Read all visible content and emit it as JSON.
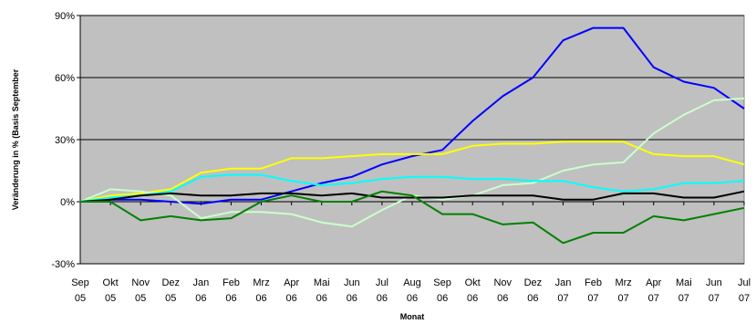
{
  "chart_data": {
    "type": "line",
    "xlabel": "Monat",
    "ylabel": "Veränderung in % (Basis September",
    "ylim": [
      -30,
      90
    ],
    "yticks": [
      -30,
      0,
      30,
      60,
      90
    ],
    "ytick_labels": [
      "-30%",
      "0%",
      "30%",
      "60%",
      "90%"
    ],
    "grid": "horizontal",
    "plot_background": "#c0c0c0",
    "categories": [
      [
        "Sep",
        "05"
      ],
      [
        "Okt",
        "05"
      ],
      [
        "Nov",
        "05"
      ],
      [
        "Dez",
        "05"
      ],
      [
        "Jan",
        "06"
      ],
      [
        "Feb",
        "06"
      ],
      [
        "Mrz",
        "06"
      ],
      [
        "Apr",
        "06"
      ],
      [
        "Mai",
        "06"
      ],
      [
        "Jun",
        "06"
      ],
      [
        "Jul",
        "06"
      ],
      [
        "Aug",
        "06"
      ],
      [
        "Sep",
        "06"
      ],
      [
        "Okt",
        "06"
      ],
      [
        "Nov",
        "06"
      ],
      [
        "Dez",
        "06"
      ],
      [
        "Jan",
        "07"
      ],
      [
        "Feb",
        "07"
      ],
      [
        "Mrz",
        "07"
      ],
      [
        "Apr",
        "07"
      ],
      [
        "Mai",
        "07"
      ],
      [
        "Jun",
        "07"
      ],
      [
        "Jul",
        "07"
      ]
    ],
    "series": [
      {
        "color": "#0000ff",
        "values": [
          0,
          1,
          1,
          0,
          -1,
          1,
          1,
          5,
          9,
          12,
          18,
          22,
          25,
          39,
          51,
          60,
          78,
          84,
          84,
          65,
          58,
          55,
          45
        ]
      },
      {
        "color": "#ffff00",
        "values": [
          0,
          3,
          4,
          6,
          14,
          16,
          16,
          21,
          21,
          22,
          23,
          23,
          23,
          27,
          28,
          28,
          29,
          29,
          29,
          23,
          22,
          22,
          18
        ]
      },
      {
        "color": "#ccffcc",
        "values": [
          0,
          6,
          5,
          3,
          -8,
          -5,
          -5,
          -6,
          -10,
          -12,
          -4,
          3,
          1,
          3,
          8,
          9,
          15,
          18,
          19,
          33,
          42,
          49,
          50
        ]
      },
      {
        "color": "#00ffff",
        "values": [
          0,
          2,
          3,
          5,
          12,
          13,
          13,
          10,
          8,
          9,
          11,
          12,
          12,
          11,
          11,
          10,
          10,
          7,
          5,
          6,
          9,
          9,
          10
        ]
      },
      {
        "color": "#000000",
        "values": [
          0,
          1,
          3,
          4,
          3,
          3,
          4,
          4,
          3,
          4,
          2,
          2,
          2,
          3,
          3,
          3,
          1,
          1,
          4,
          4,
          2,
          2,
          5
        ]
      },
      {
        "color": "#008000",
        "values": [
          0,
          0,
          -9,
          -7,
          -9,
          -8,
          0,
          3,
          0,
          0,
          5,
          3,
          -6,
          -6,
          -11,
          -10,
          -20,
          -15,
          -15,
          -7,
          -9,
          -6,
          -3
        ]
      }
    ]
  }
}
